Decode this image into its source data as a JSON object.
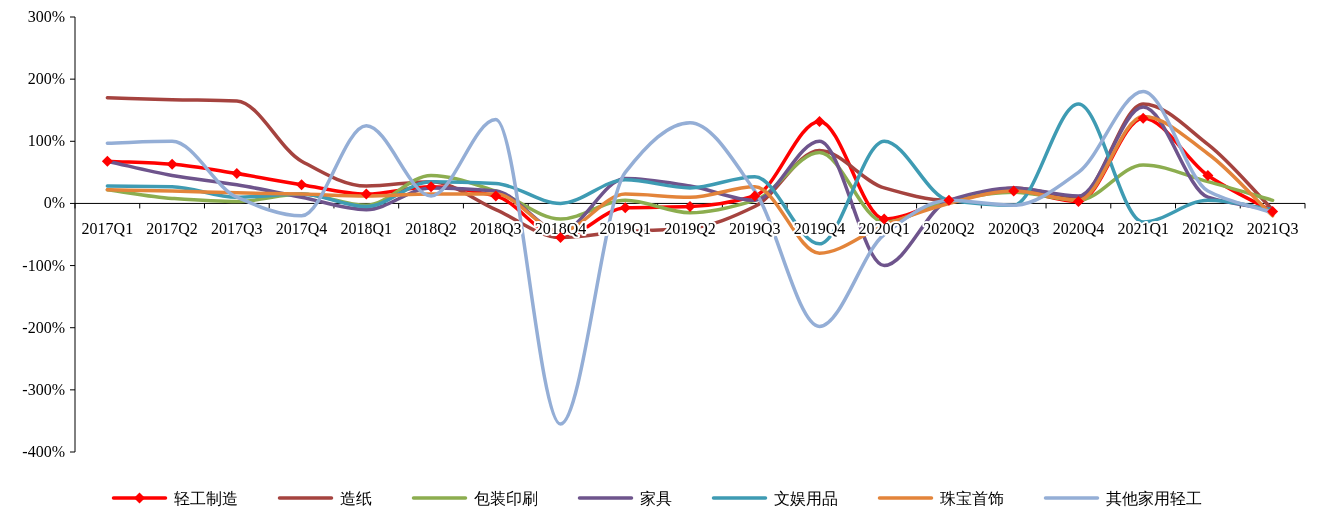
{
  "chart_data": {
    "type": "line",
    "categories": [
      "2017Q1",
      "2017Q2",
      "2017Q3",
      "2017Q4",
      "2018Q1",
      "2018Q2",
      "2018Q3",
      "2018Q4",
      "2019Q1",
      "2019Q2",
      "2019Q3",
      "2019Q4",
      "2020Q1",
      "2020Q2",
      "2020Q3",
      "2020Q4",
      "2021Q1",
      "2021Q2",
      "2021Q3"
    ],
    "series": [
      {
        "name": "轻工制造",
        "color": "#ff0000",
        "marker": "diamond",
        "values": [
          68,
          63,
          48,
          30,
          15,
          27,
          12,
          -55,
          -7,
          -5,
          12,
          132,
          -25,
          5,
          20,
          3,
          137,
          45,
          -13
        ]
      },
      {
        "name": "造纸",
        "color": "#a5433f",
        "values": [
          170,
          167,
          165,
          68,
          28,
          35,
          -10,
          -55,
          -45,
          -40,
          -5,
          85,
          25,
          5,
          25,
          10,
          160,
          95,
          -10
        ]
      },
      {
        "name": "包装印刷",
        "color": "#8cad4f",
        "values": [
          22,
          8,
          3,
          15,
          -3,
          45,
          20,
          -25,
          5,
          -15,
          5,
          82,
          -30,
          5,
          18,
          5,
          62,
          35,
          5
        ]
      },
      {
        "name": "家具",
        "color": "#6e548c",
        "values": [
          68,
          45,
          30,
          10,
          -10,
          25,
          20,
          -45,
          40,
          28,
          5,
          100,
          -100,
          5,
          25,
          12,
          155,
          10,
          -10
        ]
      },
      {
        "name": "文娱用品",
        "color": "#3e9bb3",
        "values": [
          28,
          27,
          10,
          15,
          -5,
          35,
          32,
          0,
          38,
          25,
          43,
          -65,
          100,
          5,
          -3,
          160,
          -30,
          5,
          -10
        ]
      },
      {
        "name": "珠宝首饰",
        "color": "#e3843a",
        "values": [
          22,
          20,
          17,
          15,
          12,
          15,
          15,
          -45,
          15,
          10,
          27,
          -80,
          -35,
          0,
          20,
          5,
          140,
          80,
          -20
        ]
      },
      {
        "name": "其他家用轻工",
        "color": "#94aed6",
        "values": [
          97,
          100,
          10,
          -20,
          125,
          12,
          135,
          -355,
          50,
          130,
          20,
          -198,
          -50,
          5,
          -3,
          50,
          180,
          20,
          -15
        ]
      }
    ],
    "ylim": [
      -400,
      300
    ],
    "yticks": [
      {
        "value": -400,
        "label": "-400%"
      },
      {
        "value": -300,
        "label": "-300%"
      },
      {
        "value": -200,
        "label": "-200%"
      },
      {
        "value": -100,
        "label": "-100%"
      },
      {
        "value": 0,
        "label": "0%"
      },
      {
        "value": 100,
        "label": "100%"
      },
      {
        "value": 200,
        "label": "200%"
      },
      {
        "value": 300,
        "label": "300%"
      }
    ],
    "grid": false,
    "legend": "bottom"
  }
}
